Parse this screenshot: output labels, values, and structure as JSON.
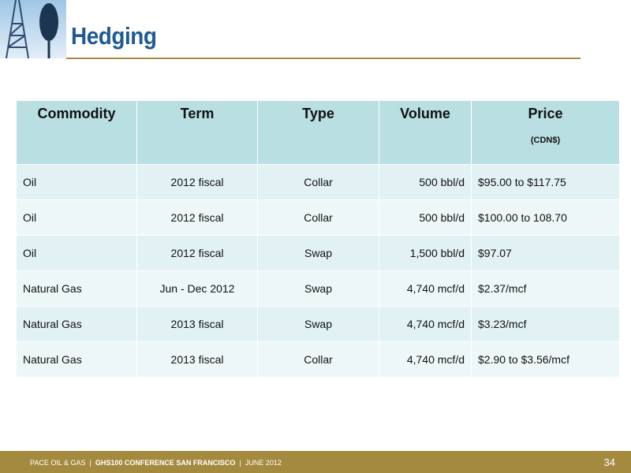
{
  "header": {
    "title": "Hedging"
  },
  "table": {
    "columns": [
      "Commodity",
      "Term",
      "Type",
      "Volume",
      "Price"
    ],
    "price_note": "(CDN$)",
    "rows": [
      [
        "Oil",
        "2012 fiscal",
        "Collar",
        "500 bbl/d",
        "$95.00 to $117.75"
      ],
      [
        "Oil",
        "2012 fiscal",
        "Collar",
        "500 bbl/d",
        "$100.00 to 108.70"
      ],
      [
        "Oil",
        "2012 fiscal",
        "Swap",
        "1,500 bbl/d",
        "$97.07"
      ],
      [
        "Natural Gas",
        "Jun - Dec 2012",
        "Swap",
        "4,740 mcf/d",
        "$2.37/mcf"
      ],
      [
        "Natural Gas",
        "2013 fiscal",
        "Swap",
        "4,740 mcf/d",
        "$3.23/mcf"
      ],
      [
        "Natural Gas",
        "2013 fiscal",
        "Collar",
        "4,740 mcf/d",
        "$2.90 to $3.56/mcf"
      ]
    ]
  },
  "footer": {
    "company": "PACE OIL & GAS",
    "separator": "|",
    "event": "GHS100 CONFERENCE SAN FRANCISCO",
    "date": "JUNE 2012",
    "page": "34"
  }
}
